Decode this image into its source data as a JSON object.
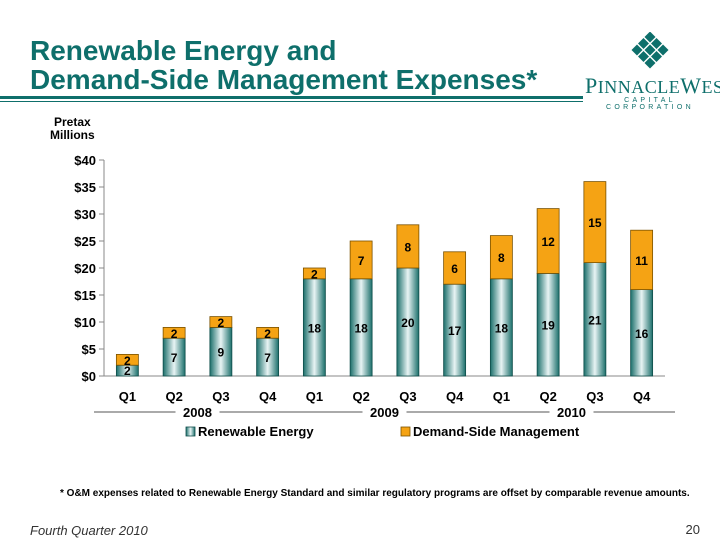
{
  "title_line1": "Renewable Energy and",
  "title_line2": "Demand-Side Management Expenses*",
  "logo": {
    "name_first_letter": "P",
    "name_rest": "INNACLE",
    "name_second_letter": "W",
    "name_second_rest": "EST",
    "sub": "CAPITAL CORPORATION",
    "color": "#0e6f6b"
  },
  "y_label_line1": "Pretax",
  "y_label_line2": "Millions",
  "footnote": "* O&M expenses related to Renewable Energy Standard and similar regulatory programs are offset by comparable revenue amounts.",
  "footer_left": "Fourth Quarter 2010",
  "page_number": "20",
  "chart_data": {
    "type": "bar",
    "stacked": true,
    "categories": [
      "Q1",
      "Q2",
      "Q3",
      "Q4",
      "Q1",
      "Q2",
      "Q3",
      "Q4",
      "Q1",
      "Q2",
      "Q3",
      "Q4"
    ],
    "groups": [
      {
        "label": "2008",
        "from": 0,
        "to": 3
      },
      {
        "label": "2009",
        "from": 4,
        "to": 7
      },
      {
        "label": "2010",
        "from": 8,
        "to": 11
      }
    ],
    "series": [
      {
        "name": "Renewable Energy",
        "color": "#1f7f7a",
        "values": [
          2,
          7,
          9,
          7,
          18,
          18,
          20,
          17,
          18,
          19,
          21,
          16
        ]
      },
      {
        "name": "Demand-Side Management",
        "color": "#f5a314",
        "values": [
          2,
          2,
          2,
          2,
          2,
          7,
          8,
          6,
          8,
          12,
          15,
          11
        ]
      }
    ],
    "y_ticks": [
      "$0",
      "$5",
      "$10",
      "$15",
      "$20",
      "$25",
      "$30",
      "$35",
      "$40"
    ],
    "ylim": [
      0,
      40
    ],
    "grid": false,
    "legend": "bottom"
  }
}
